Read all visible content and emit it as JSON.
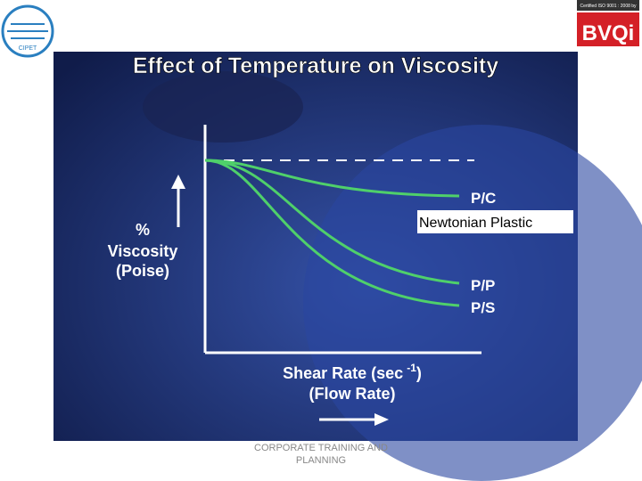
{
  "header": {
    "left_logo": "CIPET",
    "certification": "Certified ISO 9001 : 2008 by",
    "right_logo": "BVQi"
  },
  "slide": {
    "title": "Effect of Temperature on Viscosity",
    "y_label": [
      "%",
      "Viscosity",
      "(Poise)"
    ],
    "x_label": {
      "text": "Shear Rate (sec",
      "superscript": "-1",
      "close": ")",
      "line2": "(Flow Rate)"
    },
    "curves": [
      "P/C",
      "P/P",
      "P/S"
    ],
    "annotation": "Newtonian Plastic"
  },
  "footer": "CORPORATE TRAINING AND PLANNING"
}
